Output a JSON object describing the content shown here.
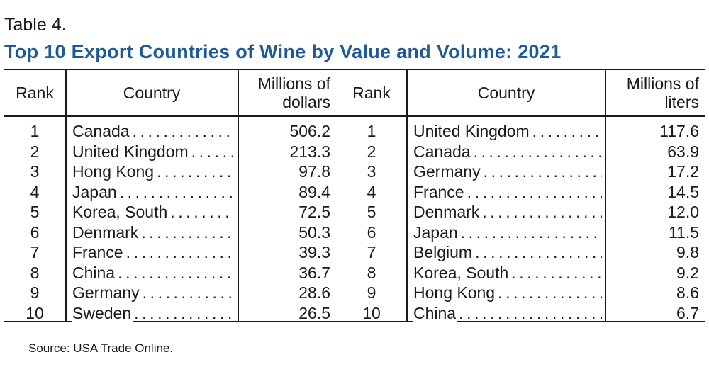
{
  "label": "Table 4.",
  "title": "Top 10 Export Countries of Wine by Value and Volume: 2021",
  "headers": {
    "rank_left": "Rank",
    "country_left": "Country",
    "value_line1": "Millions of",
    "value_line2": "dollars",
    "rank_right": "Rank",
    "country_right": "Country",
    "volume_line1": "Millions of",
    "volume_line2": "liters"
  },
  "value_rows": [
    {
      "rank": "1",
      "country": "Canada",
      "value": "506.2"
    },
    {
      "rank": "2",
      "country": "United Kingdom",
      "value": "213.3"
    },
    {
      "rank": "3",
      "country": "Hong Kong",
      "value": "97.8"
    },
    {
      "rank": "4",
      "country": "Japan",
      "value": "89.4"
    },
    {
      "rank": "5",
      "country": "Korea, South",
      "value": "72.5"
    },
    {
      "rank": "6",
      "country": "Denmark",
      "value": "50.3"
    },
    {
      "rank": "7",
      "country": "France",
      "value": "39.3"
    },
    {
      "rank": "8",
      "country": "China",
      "value": "36.7"
    },
    {
      "rank": "9",
      "country": "Germany",
      "value": "28.6"
    },
    {
      "rank": "10",
      "country": "Sweden",
      "value": "26.5"
    }
  ],
  "volume_rows": [
    {
      "rank": "1",
      "country": "United Kingdom",
      "value": "117.6"
    },
    {
      "rank": "2",
      "country": "Canada",
      "value": "63.9"
    },
    {
      "rank": "3",
      "country": "Germany",
      "value": "17.2"
    },
    {
      "rank": "4",
      "country": "France",
      "value": "14.5"
    },
    {
      "rank": "5",
      "country": "Denmark",
      "value": "12.0"
    },
    {
      "rank": "6",
      "country": "Japan",
      "value": "11.5"
    },
    {
      "rank": "7",
      "country": "Belgium",
      "value": "9.8"
    },
    {
      "rank": "8",
      "country": "Korea, South",
      "value": "9.2"
    },
    {
      "rank": "9",
      "country": "Hong Kong",
      "value": "8.6"
    },
    {
      "rank": "10",
      "country": "China",
      "value": "6.7"
    }
  ],
  "source": "Source: USA Trade Online.",
  "colors": {
    "title": "#1f5a96",
    "text": "#1a1a1a",
    "rule": "#1a1a1a"
  }
}
